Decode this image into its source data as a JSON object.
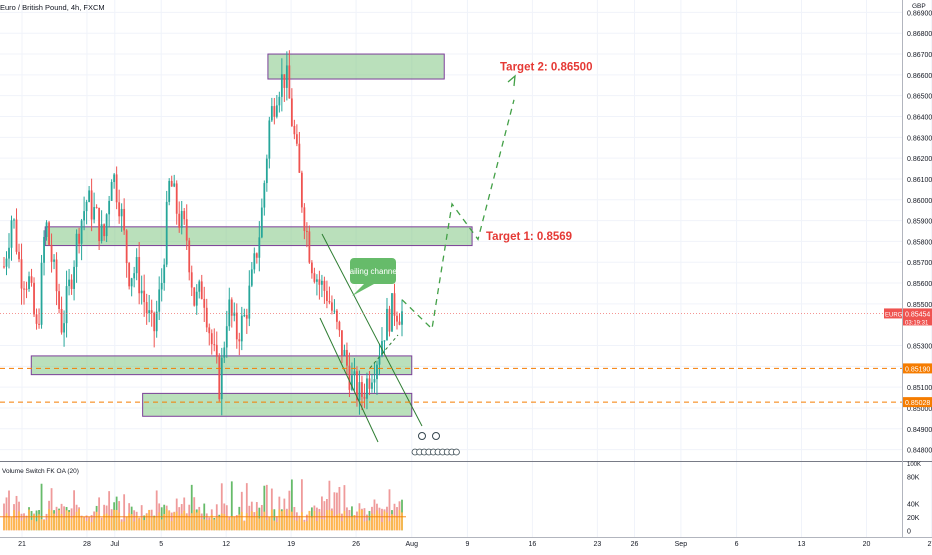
{
  "chart_data": {
    "type": "candlestick",
    "title": "Euro / British Pound, 4h, FXCM",
    "currency_label": "GBP",
    "price_axis": {
      "ylim": [
        0.8475,
        0.8695
      ],
      "ticks": [
        "0.86900",
        "0.86800",
        "0.86700",
        "0.86600",
        "0.86500",
        "0.86400",
        "0.86300",
        "0.86200",
        "0.86100",
        "0.86000",
        "0.85900",
        "0.85800",
        "0.85700",
        "0.85600",
        "0.85500",
        "0.85300",
        "0.85200",
        "0.85100",
        "0.85000",
        "0.84900",
        "0.84800"
      ],
      "tick_values": [
        0.869,
        0.868,
        0.867,
        0.866,
        0.865,
        0.864,
        0.863,
        0.862,
        0.861,
        0.86,
        0.859,
        0.858,
        0.857,
        0.856,
        0.855,
        0.853,
        0.852,
        0.851,
        0.85,
        0.849,
        0.848
      ]
    },
    "time_axis": {
      "labels": [
        "21",
        "28",
        "Jul",
        "5",
        "12",
        "19",
        "26",
        "Aug",
        "9",
        "16",
        "23",
        "26",
        "Sep",
        "6",
        "13",
        "20",
        "27"
      ],
      "positions_days": [
        0,
        7,
        10,
        15,
        22,
        29,
        36,
        42,
        48,
        55,
        62,
        66,
        71,
        77,
        84,
        91,
        98
      ]
    },
    "price_series": [
      0.8568,
      0.8594,
      0.8565,
      0.8561,
      0.8534,
      0.859,
      0.8565,
      0.8539,
      0.8561,
      0.8586,
      0.86,
      0.8593,
      0.858,
      0.8615,
      0.8598,
      0.8565,
      0.8566,
      0.855,
      0.8535,
      0.856,
      0.861,
      0.8592,
      0.8583,
      0.855,
      0.8558,
      0.8532,
      0.851,
      0.855,
      0.8535,
      0.8543,
      0.8563,
      0.859,
      0.8637,
      0.8655,
      0.866,
      0.863,
      0.8598,
      0.8572,
      0.856,
      0.8555,
      0.854,
      0.8525,
      0.8512,
      0.8505,
      0.8515,
      0.8525,
      0.854,
      0.8549,
      0.85454
    ],
    "current_price": {
      "symbol": "EURGBP",
      "value": "0.85454",
      "countdown": "03:19:31"
    },
    "levels": [
      {
        "label": "0.85190",
        "value": 0.8519
      },
      {
        "label": "0.85028",
        "value": 0.85028
      }
    ],
    "zones": [
      {
        "name": "target-2-zone",
        "low": 0.8658,
        "high": 0.867,
        "from_day": 26.5,
        "to_day": 45.5,
        "label": "Target 2: 0.86500"
      },
      {
        "name": "target-1-zone",
        "low": 0.8578,
        "high": 0.8587,
        "from_day": 2.5,
        "to_day": 48.5,
        "label": "Target 1: 0.8569"
      },
      {
        "name": "support-zone-upper",
        "low": 0.8516,
        "high": 0.8525,
        "from_day": 1.0,
        "to_day": 42.0,
        "label": ""
      },
      {
        "name": "support-zone-lower",
        "low": 0.8496,
        "high": 0.8507,
        "from_day": 13.0,
        "to_day": 42.0,
        "label": ""
      }
    ],
    "annotations": {
      "channel_label": "failing channel"
    },
    "projection": [
      [
        34.7,
        0.8534
      ],
      [
        36.5,
        0.854
      ],
      [
        37.8,
        0.856
      ],
      [
        40.0,
        0.858
      ],
      [
        42.5,
        0.86
      ],
      [
        44.5,
        0.8648
      ]
    ],
    "volume_indicator": {
      "name": "Volume Switch FK OA (20)",
      "ylim": [
        -10,
        100
      ],
      "ticks": [
        "80K",
        "40K",
        "20K",
        "0"
      ],
      "tick_values": [
        80,
        40,
        20,
        0
      ]
    }
  }
}
